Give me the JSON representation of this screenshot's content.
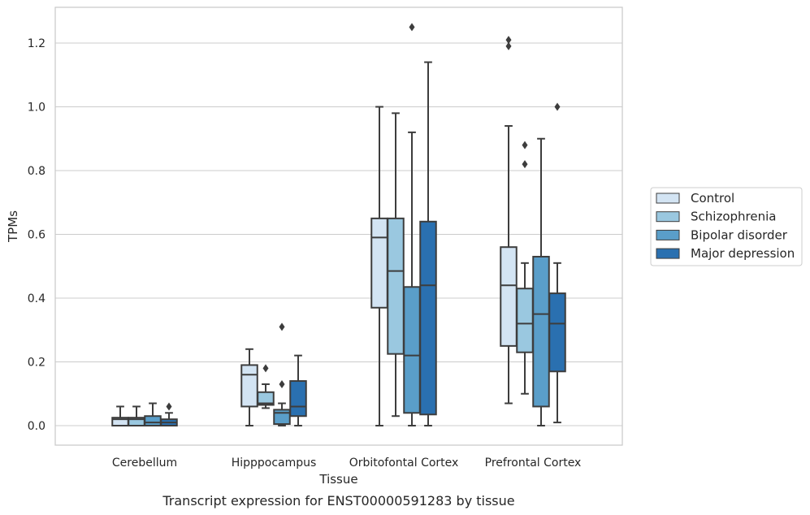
{
  "chart_data": {
    "type": "box",
    "xlabel": "Tissue",
    "ylabel": "TPMs",
    "caption": "Transcript expression for ENST00000591283 by tissue",
    "categories": [
      "Cerebellum",
      "Hipppocampus",
      "Orbitofontal Cortex",
      "Prefrontal Cortex"
    ],
    "ylim": [
      -0.06,
      1.31
    ],
    "yticks": [
      "0.0",
      "0.2",
      "0.4",
      "0.6",
      "0.8",
      "1.0",
      "1.2"
    ],
    "grid": true,
    "legend_position": "right-center",
    "series": [
      {
        "name": "Control",
        "color": "#d3e4f3",
        "boxes": [
          {
            "whislo": 0.0,
            "q1": 0.0,
            "med": 0.02,
            "q3": 0.025,
            "whishi": 0.06,
            "fliers": []
          },
          {
            "whislo": 0.0,
            "q1": 0.06,
            "med": 0.16,
            "q3": 0.19,
            "whishi": 0.24,
            "fliers": []
          },
          {
            "whislo": 0.0,
            "q1": 0.37,
            "med": 0.59,
            "q3": 0.65,
            "whishi": 1.0,
            "fliers": []
          },
          {
            "whislo": 0.07,
            "q1": 0.25,
            "med": 0.44,
            "q3": 0.56,
            "whishi": 0.94,
            "fliers": [
              1.19,
              1.21
            ]
          }
        ]
      },
      {
        "name": "Schizophrenia",
        "color": "#9ac8e0",
        "boxes": [
          {
            "whislo": 0.0,
            "q1": 0.0,
            "med": 0.02,
            "q3": 0.025,
            "whishi": 0.06,
            "fliers": []
          },
          {
            "whislo": 0.055,
            "q1": 0.065,
            "med": 0.07,
            "q3": 0.105,
            "whishi": 0.13,
            "fliers": [
              0.18
            ]
          },
          {
            "whislo": 0.03,
            "q1": 0.225,
            "med": 0.485,
            "q3": 0.65,
            "whishi": 0.98,
            "fliers": []
          },
          {
            "whislo": 0.1,
            "q1": 0.23,
            "med": 0.32,
            "q3": 0.43,
            "whishi": 0.51,
            "fliers": [
              0.82,
              0.88
            ]
          }
        ]
      },
      {
        "name": "Bipolar disorder",
        "color": "#5a9ec9",
        "boxes": [
          {
            "whislo": 0.0,
            "q1": 0.0,
            "med": 0.01,
            "q3": 0.03,
            "whishi": 0.07,
            "fliers": []
          },
          {
            "whislo": 0.0,
            "q1": 0.005,
            "med": 0.04,
            "q3": 0.05,
            "whishi": 0.07,
            "fliers": [
              0.13,
              0.31
            ]
          },
          {
            "whislo": 0.0,
            "q1": 0.04,
            "med": 0.22,
            "q3": 0.435,
            "whishi": 0.92,
            "fliers": [
              1.25
            ]
          },
          {
            "whislo": 0.0,
            "q1": 0.06,
            "med": 0.35,
            "q3": 0.53,
            "whishi": 0.9,
            "fliers": []
          }
        ]
      },
      {
        "name": "Major depression",
        "color": "#2a70b0",
        "boxes": [
          {
            "whislo": 0.0,
            "q1": 0.0,
            "med": 0.01,
            "q3": 0.02,
            "whishi": 0.04,
            "fliers": [
              0.06
            ]
          },
          {
            "whislo": 0.0,
            "q1": 0.03,
            "med": 0.06,
            "q3": 0.14,
            "whishi": 0.22,
            "fliers": []
          },
          {
            "whislo": 0.0,
            "q1": 0.035,
            "med": 0.44,
            "q3": 0.64,
            "whishi": 1.14,
            "fliers": []
          },
          {
            "whislo": 0.01,
            "q1": 0.17,
            "med": 0.32,
            "q3": 0.415,
            "whishi": 0.51,
            "fliers": [
              1.0
            ]
          }
        ]
      }
    ]
  }
}
